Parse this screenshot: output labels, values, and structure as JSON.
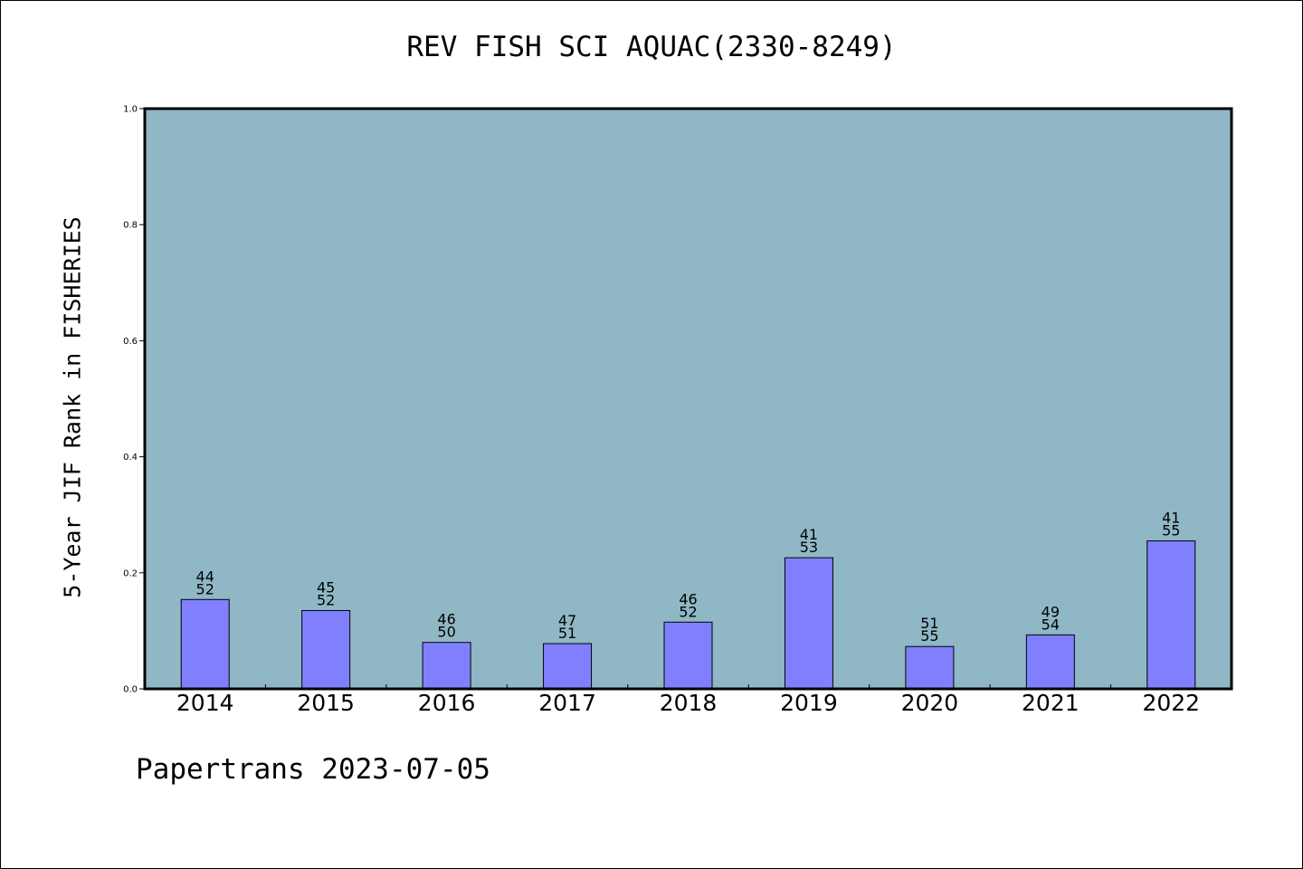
{
  "title": "REV FISH SCI AQUAC(2330-8249)",
  "footer": "Papertrans 2023-07-05",
  "colors": {
    "plot_background": "#8fb7c5",
    "bar_fill": "#8080ff",
    "bar_stroke": "#000000",
    "page_background": "#ffffff"
  },
  "chart_data": {
    "type": "bar",
    "title": "REV FISH SCI AQUAC(2330-8249)",
    "xlabel": "",
    "ylabel": "5-Year JIF Rank in FISHERIES",
    "ylim": [
      0.0,
      1.0
    ],
    "yticks": [
      "0.0",
      "0.2",
      "0.4",
      "0.6",
      "0.8",
      "1.0"
    ],
    "grid": false,
    "legend": "none",
    "categories": [
      "2014",
      "2015",
      "2016",
      "2017",
      "2018",
      "2019",
      "2020",
      "2021",
      "2022"
    ],
    "values": [
      0.154,
      0.135,
      0.08,
      0.078,
      0.115,
      0.226,
      0.073,
      0.093,
      0.255
    ],
    "labels_top": [
      "44",
      "45",
      "46",
      "47",
      "46",
      "41",
      "51",
      "49",
      "41"
    ],
    "labels_bottom": [
      "52",
      "52",
      "50",
      "51",
      "52",
      "53",
      "55",
      "54",
      "55"
    ]
  }
}
